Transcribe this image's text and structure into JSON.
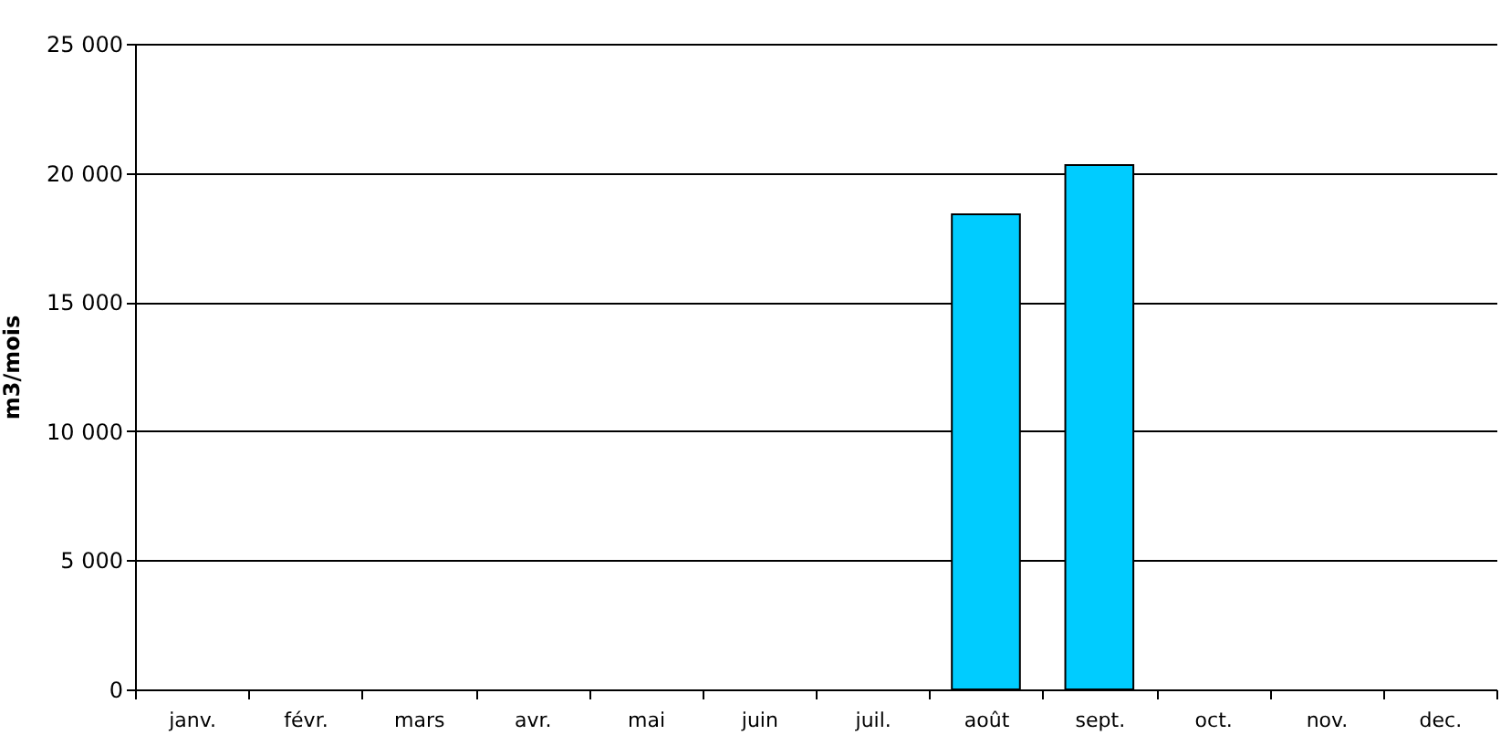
{
  "chart_data": {
    "type": "bar",
    "ylabel": "m3/mois",
    "categories": [
      "janv.",
      "févr.",
      "mars",
      "avr.",
      "mai",
      "juin",
      "juil.",
      "août",
      "sept.",
      "oct.",
      "nov.",
      "dec."
    ],
    "values": [
      null,
      null,
      null,
      null,
      null,
      null,
      null,
      18400,
      20300,
      null,
      null,
      null
    ],
    "color": "#00ccff",
    "ylim": [
      0,
      25000
    ],
    "yticks": [
      0,
      {
        "value": 5000,
        "label": "5 000"
      },
      {
        "value": 10000,
        "label": "10 000"
      },
      {
        "value": 15000,
        "label": "15 000"
      },
      {
        "value": 20000,
        "label": "20 000"
      },
      {
        "value": 25000,
        "label": "25 000"
      }
    ],
    "grid": "y"
  }
}
